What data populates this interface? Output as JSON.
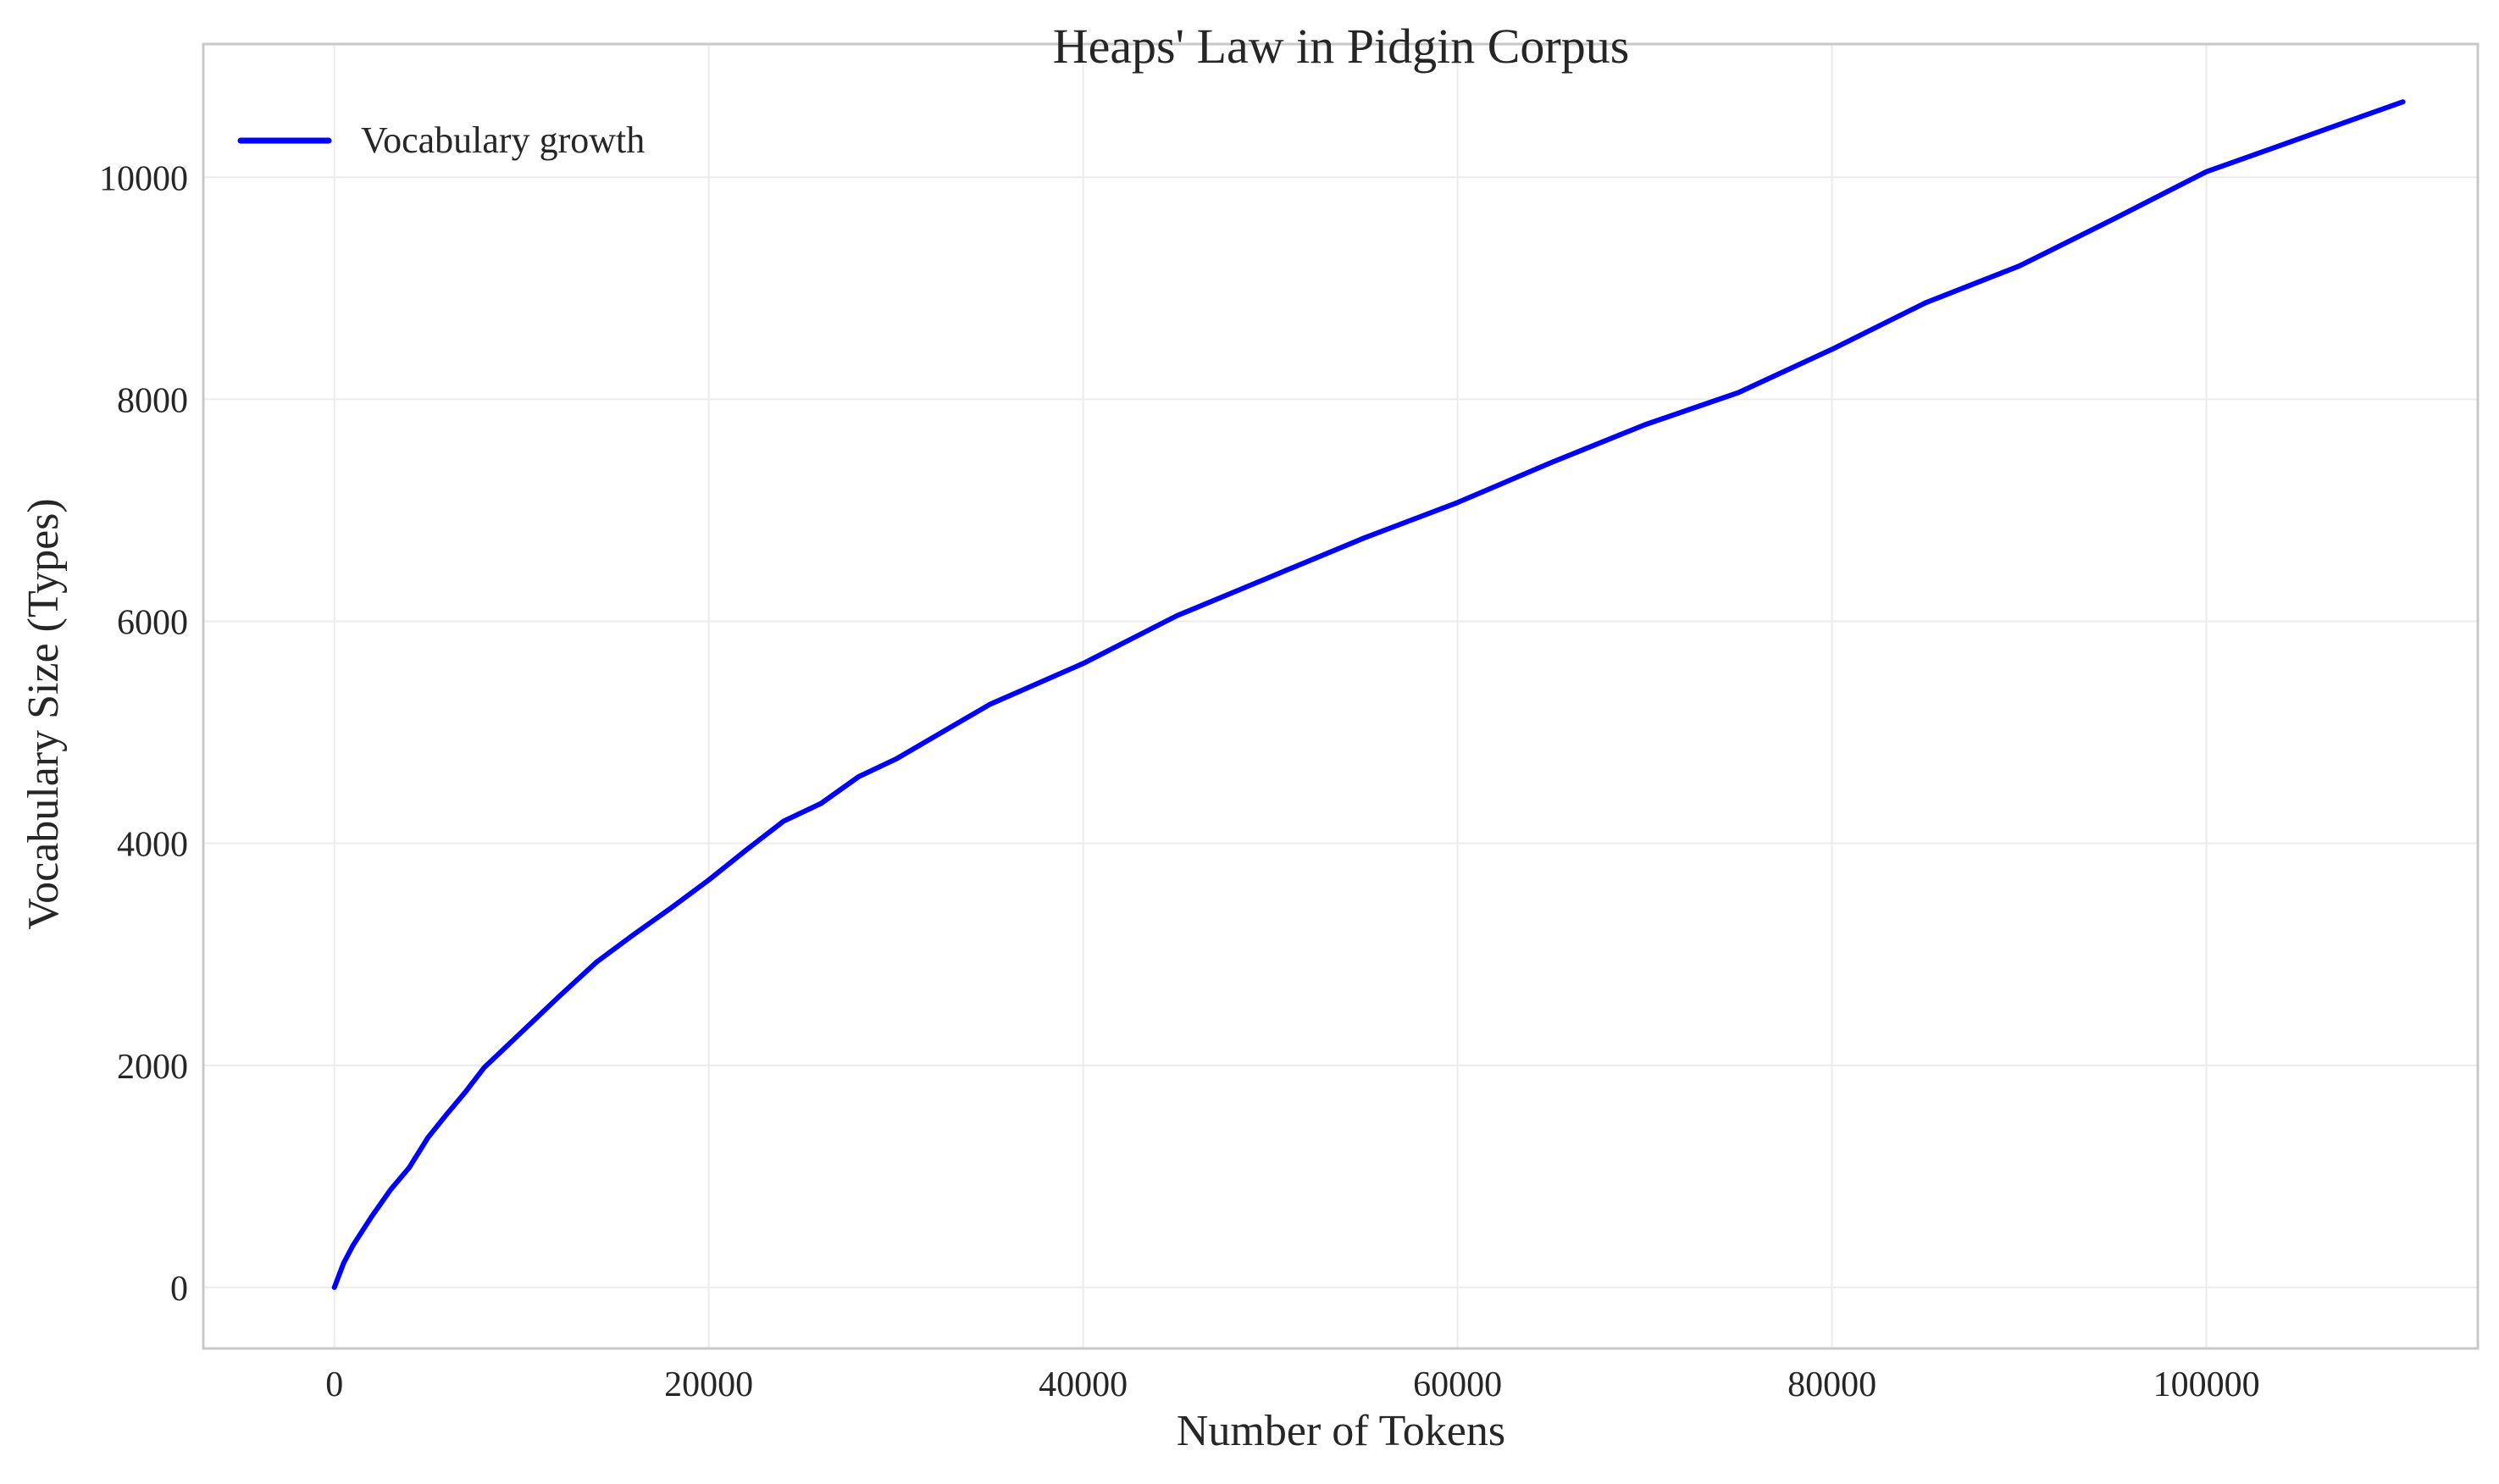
{
  "chart_data": {
    "type": "line",
    "title": "Heaps' Law in Pidgin Corpus",
    "xlabel": "Number of Tokens",
    "ylabel": "Vocabulary Size (Types)",
    "xlim": [
      -7000,
      114500
    ],
    "ylim": [
      -550,
      11200
    ],
    "xticks": [
      0,
      20000,
      40000,
      60000,
      80000,
      100000
    ],
    "yticks": [
      0,
      2000,
      4000,
      6000,
      8000,
      10000
    ],
    "grid": true,
    "legend_position": "top-left",
    "series": [
      {
        "name": "Vocabulary growth",
        "color": "#0000ff",
        "x": [
          0,
          500,
          1000,
          2000,
          3000,
          4000,
          5000,
          6000,
          7000,
          8000,
          10000,
          12000,
          14000,
          16000,
          18000,
          20000,
          22000,
          24000,
          26000,
          28000,
          30000,
          35000,
          40000,
          45000,
          50000,
          55000,
          60000,
          65000,
          70000,
          75000,
          80000,
          85000,
          90000,
          95000,
          100000,
          105000,
          110500
        ],
        "y": [
          0,
          220,
          380,
          640,
          880,
          1080,
          1350,
          1560,
          1760,
          1980,
          2300,
          2620,
          2930,
          3180,
          3420,
          3670,
          3940,
          4200,
          4360,
          4600,
          4760,
          5250,
          5620,
          6050,
          6400,
          6750,
          7070,
          7430,
          7770,
          8060,
          8450,
          8870,
          9200,
          9620,
          10050,
          10350,
          10680
        ]
      }
    ]
  }
}
